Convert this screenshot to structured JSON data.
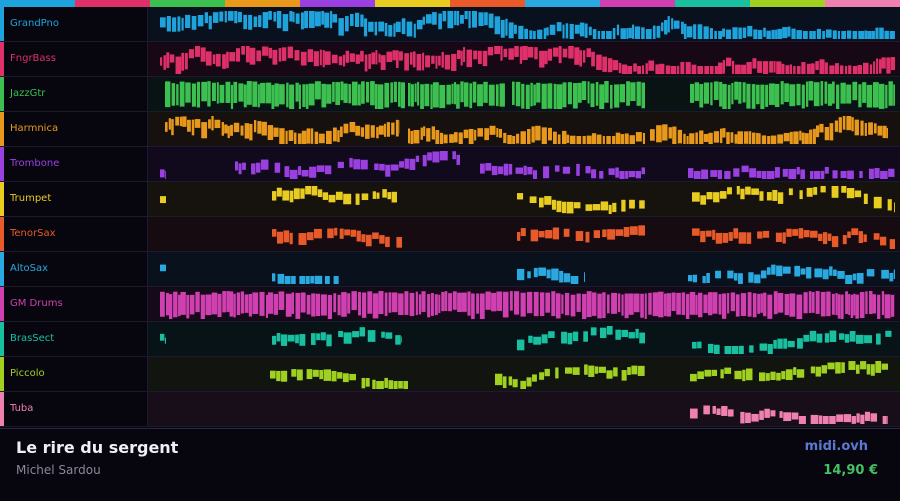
{
  "tracks": [
    {
      "name": "GrandPno",
      "color": "#1fa3dc"
    },
    {
      "name": "FngrBass",
      "color": "#e0306a"
    },
    {
      "name": "JazzGtr",
      "color": "#3cc050"
    },
    {
      "name": "Harmnica",
      "color": "#e8981a"
    },
    {
      "name": "Trombone",
      "color": "#9b40e0"
    },
    {
      "name": "Trumpet",
      "color": "#e8cc20"
    },
    {
      "name": "TenorSax",
      "color": "#e85a2a"
    },
    {
      "name": "AltoSax",
      "color": "#2aa8e0"
    },
    {
      "name": "GM Drums",
      "color": "#d040b0"
    },
    {
      "name": "BrasSect",
      "color": "#18c0a0"
    },
    {
      "name": "Piccolo",
      "color": "#a0d020"
    },
    {
      "name": "Tuba",
      "color": "#f080b0"
    }
  ],
  "song": {
    "title": "Le rire du sergent",
    "artist": "Michel Sardou"
  },
  "brand": {
    "site": "midi.ovh",
    "price": "14,90 €"
  }
}
